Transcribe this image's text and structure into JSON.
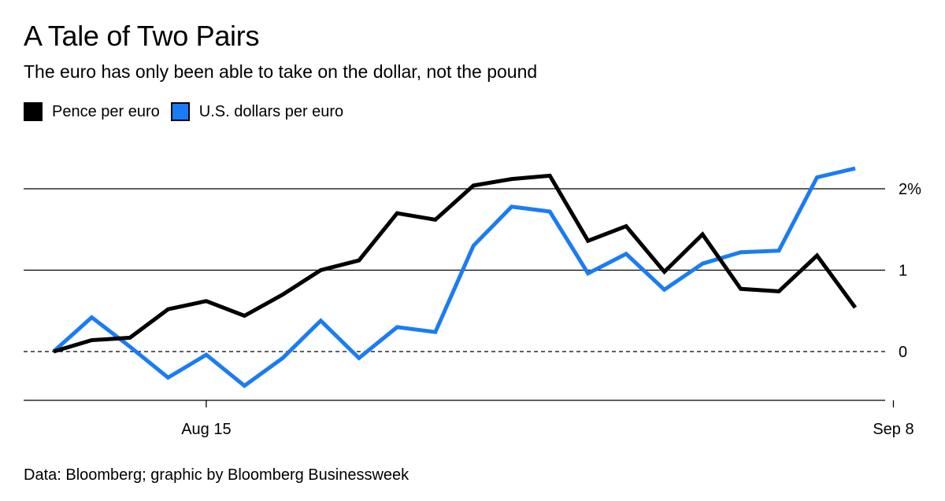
{
  "header": {
    "title": "A Tale of Two Pairs",
    "subtitle": "The euro has only been able to take on the dollar, not the pound"
  },
  "footer": {
    "source": "Data: Bloomberg; graphic by Bloomberg Businessweek"
  },
  "colors": {
    "pence": "#000000",
    "dollars": "#1a7cf5"
  },
  "chart_data": {
    "type": "line",
    "title": "A Tale of Two Pairs",
    "subtitle": "The euro has only been able to take on the dollar, not the pound",
    "xlabel": "",
    "ylabel": "",
    "x_tick_labels": [
      "Aug 15",
      "Sep 8"
    ],
    "x_tick_indices": [
      4,
      22
    ],
    "y_ticks": [
      0,
      1,
      2
    ],
    "y_tick_labels": [
      "0",
      "1",
      "2%"
    ],
    "ylim": [
      -0.6,
      2.35
    ],
    "grid": true,
    "zero_line": "dashed",
    "legend_position": "top-left",
    "series": [
      {
        "name": "Pence per euro",
        "color": "#000000",
        "values": [
          0.0,
          0.14,
          0.17,
          0.52,
          0.62,
          0.44,
          0.7,
          1.0,
          1.12,
          1.7,
          1.62,
          2.04,
          2.12,
          2.16,
          1.36,
          1.54,
          0.98,
          1.44,
          0.77,
          0.74,
          1.18,
          0.54
        ]
      },
      {
        "name": "U.S. dollars per euro",
        "color": "#1a7cf5",
        "values": [
          0.0,
          0.42,
          0.06,
          -0.32,
          -0.04,
          -0.42,
          -0.08,
          0.38,
          -0.08,
          0.3,
          0.24,
          1.3,
          1.78,
          1.72,
          0.96,
          1.2,
          0.76,
          1.08,
          1.22,
          1.24,
          2.14,
          2.25
        ]
      }
    ]
  }
}
